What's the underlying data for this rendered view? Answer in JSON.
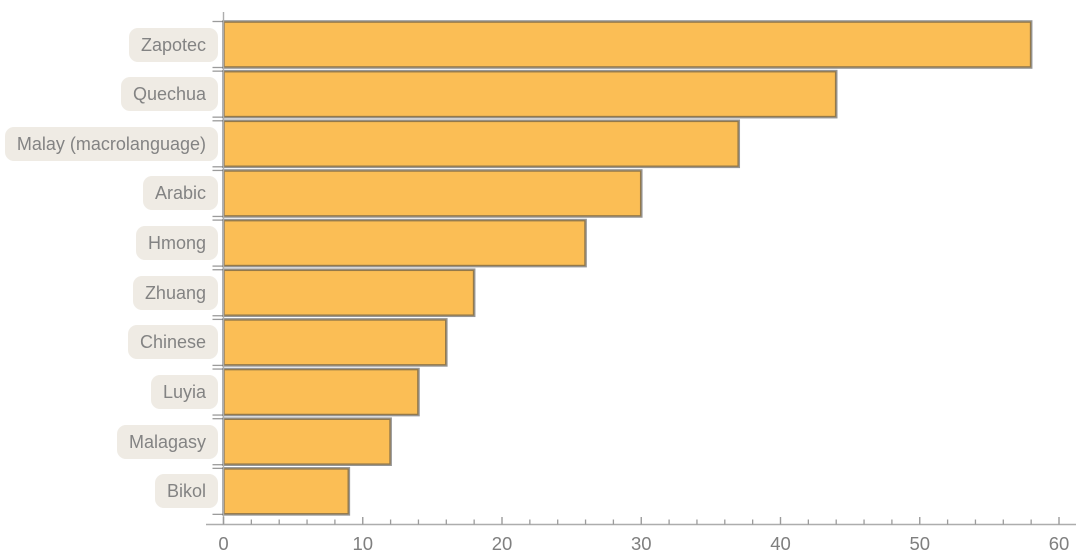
{
  "chart_data": {
    "type": "bar",
    "orientation": "horizontal",
    "title": "",
    "xlabel": "",
    "ylabel": "",
    "categories": [
      "Zapotec",
      "Quechua",
      "Malay (macrolanguage)",
      "Arabic",
      "Hmong",
      "Zhuang",
      "Chinese",
      "Luyia",
      "Malagasy",
      "Bikol"
    ],
    "values": [
      58,
      44,
      37,
      30,
      26,
      18,
      16,
      14,
      12,
      9
    ],
    "xlim": [
      0,
      61.2
    ],
    "x_major_ticks": [
      0,
      10,
      20,
      30,
      40,
      50,
      60
    ],
    "x_tick_labels": [
      "0",
      "10",
      "20",
      "30",
      "40",
      "50",
      "60"
    ],
    "x_minor_tick_step": 2,
    "grid": "off",
    "legend": "none",
    "colors": {
      "bar_fill": "#FBBE55",
      "bar_stroke": "rgba(64,64,64,0.55)",
      "axis_line": "#ADADAD",
      "tick_mark": "#9B9B9B",
      "tick_label_text": "#7F7F7F",
      "label_pill_bg": "#EFEBE4",
      "label_pill_text": "#838383"
    }
  }
}
